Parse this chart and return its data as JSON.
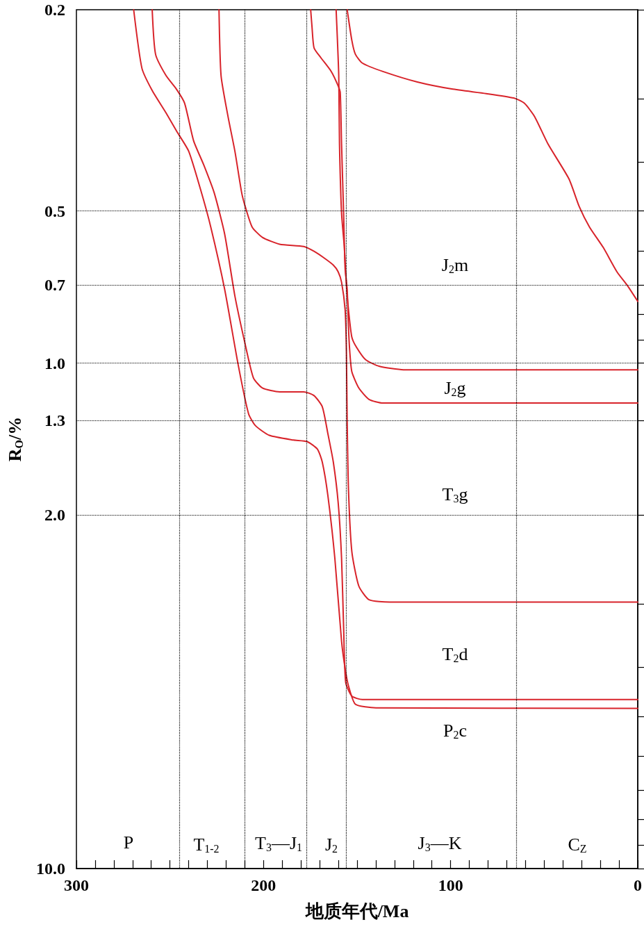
{
  "chart_data": {
    "type": "line",
    "xlabel": "地质年代/Ma",
    "ylabel": "R$_{O}$/%",
    "log": "y",
    "marker": "none",
    "line_style": "solid",
    "grid": false,
    "xlim": [
      300,
      0
    ],
    "ylim": [
      10,
      0.2
    ],
    "xticks": [
      300,
      {
        "value": 290,
        "label": null
      },
      {
        "value": 280,
        "label": null
      },
      {
        "value": 270,
        "label": null
      },
      {
        "value": 260,
        "label": null
      },
      {
        "value": 250,
        "label": null
      },
      {
        "value": 240,
        "label": null
      },
      {
        "value": 230,
        "label": null
      },
      {
        "value": 220,
        "label": null
      },
      {
        "value": 210,
        "label": null
      },
      200,
      {
        "value": 190,
        "label": null
      },
      {
        "value": 180,
        "label": null
      },
      {
        "value": 170,
        "label": null
      },
      {
        "value": 160,
        "label": null
      },
      {
        "value": 150,
        "label": null
      },
      {
        "value": 140,
        "label": null
      },
      {
        "value": 130,
        "label": null
      },
      {
        "value": 120,
        "label": null
      },
      {
        "value": 110,
        "label": null
      },
      100,
      {
        "value": 90,
        "label": null
      },
      {
        "value": 80,
        "label": null
      },
      {
        "value": 70,
        "label": null
      },
      {
        "value": 60,
        "label": null
      },
      {
        "value": 50,
        "label": null
      },
      {
        "value": 40,
        "label": null
      },
      {
        "value": 30,
        "label": null
      },
      {
        "value": 20,
        "label": null
      },
      {
        "value": 10,
        "label": null
      },
      0
    ],
    "yticks": [
      0.2,
      {
        "value": 0.3,
        "label": null
      },
      {
        "value": 0.4,
        "label": null
      },
      0.5,
      {
        "value": 0.6,
        "label": null
      },
      0.7,
      {
        "value": 0.8,
        "label": null
      },
      {
        "value": 0.9,
        "label": null
      },
      {
        "value": 1,
        "label": "1.0"
      },
      1.3,
      {
        "value": 2,
        "label": "2.0"
      },
      {
        "value": 3,
        "label": null
      },
      {
        "value": 4,
        "label": null
      },
      {
        "value": 5,
        "label": null
      },
      {
        "value": 6,
        "label": null
      },
      {
        "value": 7,
        "label": null
      },
      {
        "value": 8,
        "label": null
      },
      {
        "value": 9,
        "label": null
      },
      {
        "value": 10,
        "label": "10.0"
      }
    ],
    "series": [
      {
        "color": "#d8232a",
        "x": [
          269.4,
          265,
          259.5,
          252.1,
          246.6,
          240,
          233.7,
          228.2,
          220.8,
          213.5,
          208,
          204.3,
          196.9,
          184,
          176.7,
          171.2,
          168.6,
          165.6,
          161.9,
          158.3,
          156.4,
          154.6,
          150.9,
          139.9,
          0
        ],
        "values": [
          0.2,
          0.261,
          0.289,
          0.32,
          0.347,
          0.381,
          0.453,
          0.538,
          0.714,
          1.01,
          1.26,
          1.33,
          1.39,
          1.42,
          1.43,
          1.48,
          1.57,
          1.83,
          2.43,
          3.55,
          4.02,
          4.35,
          4.73,
          4.81,
          4.82
        ]
      },
      {
        "color": "#d8232a",
        "x": [
          259.5,
          257.7,
          252.1,
          246.6,
          242.2,
          237.4,
          231.9,
          226.4,
          220.8,
          215.3,
          209.8,
          205.4,
          200.6,
          191.4,
          178.5,
          173,
          168.6,
          165.6,
          162.7,
          160.1,
          158.3,
          157.2,
          156.1,
          152.8,
          147.2,
          0
        ],
        "values": [
          0.2,
          0.245,
          0.27,
          0.287,
          0.306,
          0.363,
          0.406,
          0.46,
          0.555,
          0.737,
          0.918,
          1.07,
          1.12,
          1.14,
          1.14,
          1.16,
          1.22,
          1.38,
          1.57,
          1.89,
          2.43,
          3.33,
          4.28,
          4.56,
          4.63,
          4.63
        ]
      },
      {
        "color": "#d8232a",
        "x": [
          223.8,
          222.7,
          219,
          215.3,
          211.7,
          209.8,
          206.1,
          200.6,
          191.4,
          178.5,
          173,
          167.5,
          162.7,
          160.1,
          158.3,
          156.4,
          155.7,
          155.3,
          154.6,
          152.8,
          149.1,
          143.6,
          132.5,
          0
        ],
        "values": [
          0.2,
          0.27,
          0.325,
          0.381,
          0.46,
          0.49,
          0.538,
          0.564,
          0.582,
          0.588,
          0.601,
          0.62,
          0.64,
          0.66,
          0.692,
          0.784,
          0.947,
          1.3,
          1.78,
          2.36,
          2.76,
          2.94,
          2.97,
          2.97
        ]
      },
      {
        "color": "#d8232a",
        "x": [
          174.8,
          174.1,
          173,
          169.3,
          163.8,
          160.1,
          159,
          158.3,
          157.2,
          156.4,
          155.3,
          154.6,
          153.9,
          152.8,
          149.1,
          143.6,
          136.2,
          0
        ],
        "values": [
          0.2,
          0.216,
          0.238,
          0.249,
          0.265,
          0.283,
          0.292,
          0.369,
          0.505,
          0.65,
          0.714,
          0.85,
          0.95,
          1.04,
          1.12,
          1.18,
          1.2,
          1.2
        ]
      },
      {
        "color": "#d8232a",
        "x": [
          161.2,
          160.5,
          159.8,
          159.4,
          158.3,
          156.8,
          155.7,
          154.6,
          152.8,
          150.2,
          145.4,
          138,
          125.2,
          0
        ],
        "values": [
          0.2,
          0.23,
          0.27,
          0.369,
          0.505,
          0.591,
          0.703,
          0.784,
          0.889,
          0.932,
          0.985,
          1.015,
          1.031,
          1.031
        ]
      },
      {
        "color": "#d8232a",
        "x": [
          155.3,
          152.8,
          150.9,
          147.2,
          136.2,
          117.8,
          99.4,
          81,
          66.3,
          60.7,
          55.2,
          47.9,
          36.8,
          31.3,
          25.8,
          18.4,
          11.1,
          5.5,
          0
        ],
        "values": [
          0.2,
          0.23,
          0.245,
          0.255,
          0.265,
          0.278,
          0.287,
          0.293,
          0.299,
          0.306,
          0.325,
          0.369,
          0.432,
          0.49,
          0.538,
          0.591,
          0.66,
          0.703,
          0.755
        ]
      }
    ],
    "ref_lines": [
      {
        "axis": "x",
        "value": 245,
        "color": "#000000",
        "line_style": "dotted"
      },
      {
        "axis": "x",
        "value": 210,
        "color": "#000000",
        "line_style": "dotted"
      },
      {
        "axis": "x",
        "value": 177,
        "color": "#000000",
        "line_style": "dotted"
      },
      {
        "axis": "x",
        "value": 156,
        "color": "#000000",
        "line_style": "dotted"
      },
      {
        "axis": "x",
        "value": 65,
        "color": "#000000",
        "line_style": "dotted"
      },
      {
        "axis": "y",
        "value": 0.5,
        "color": "#000000",
        "line_style": "dotted"
      },
      {
        "axis": "y",
        "value": 0.7,
        "color": "#000000",
        "line_style": "dotted"
      },
      {
        "axis": "y",
        "value": 1,
        "color": "#000000",
        "line_style": "dotted"
      },
      {
        "axis": "y",
        "value": 1.3,
        "color": "#000000",
        "line_style": "dotted"
      },
      {
        "axis": "y",
        "value": 2,
        "color": "#000000",
        "line_style": "dotted"
      }
    ],
    "annotations": [
      "J$_{2}$m",
      "J$_{2}$g",
      "T$_{3}$g",
      "T$_{2}$d",
      "P$_{2}$c",
      "P",
      "T$_{1-2}$",
      "T$_{3}$—J$_{1}$",
      "J$_{2}$",
      "J$_{3}$—K",
      "C$_{Z}$"
    ]
  }
}
